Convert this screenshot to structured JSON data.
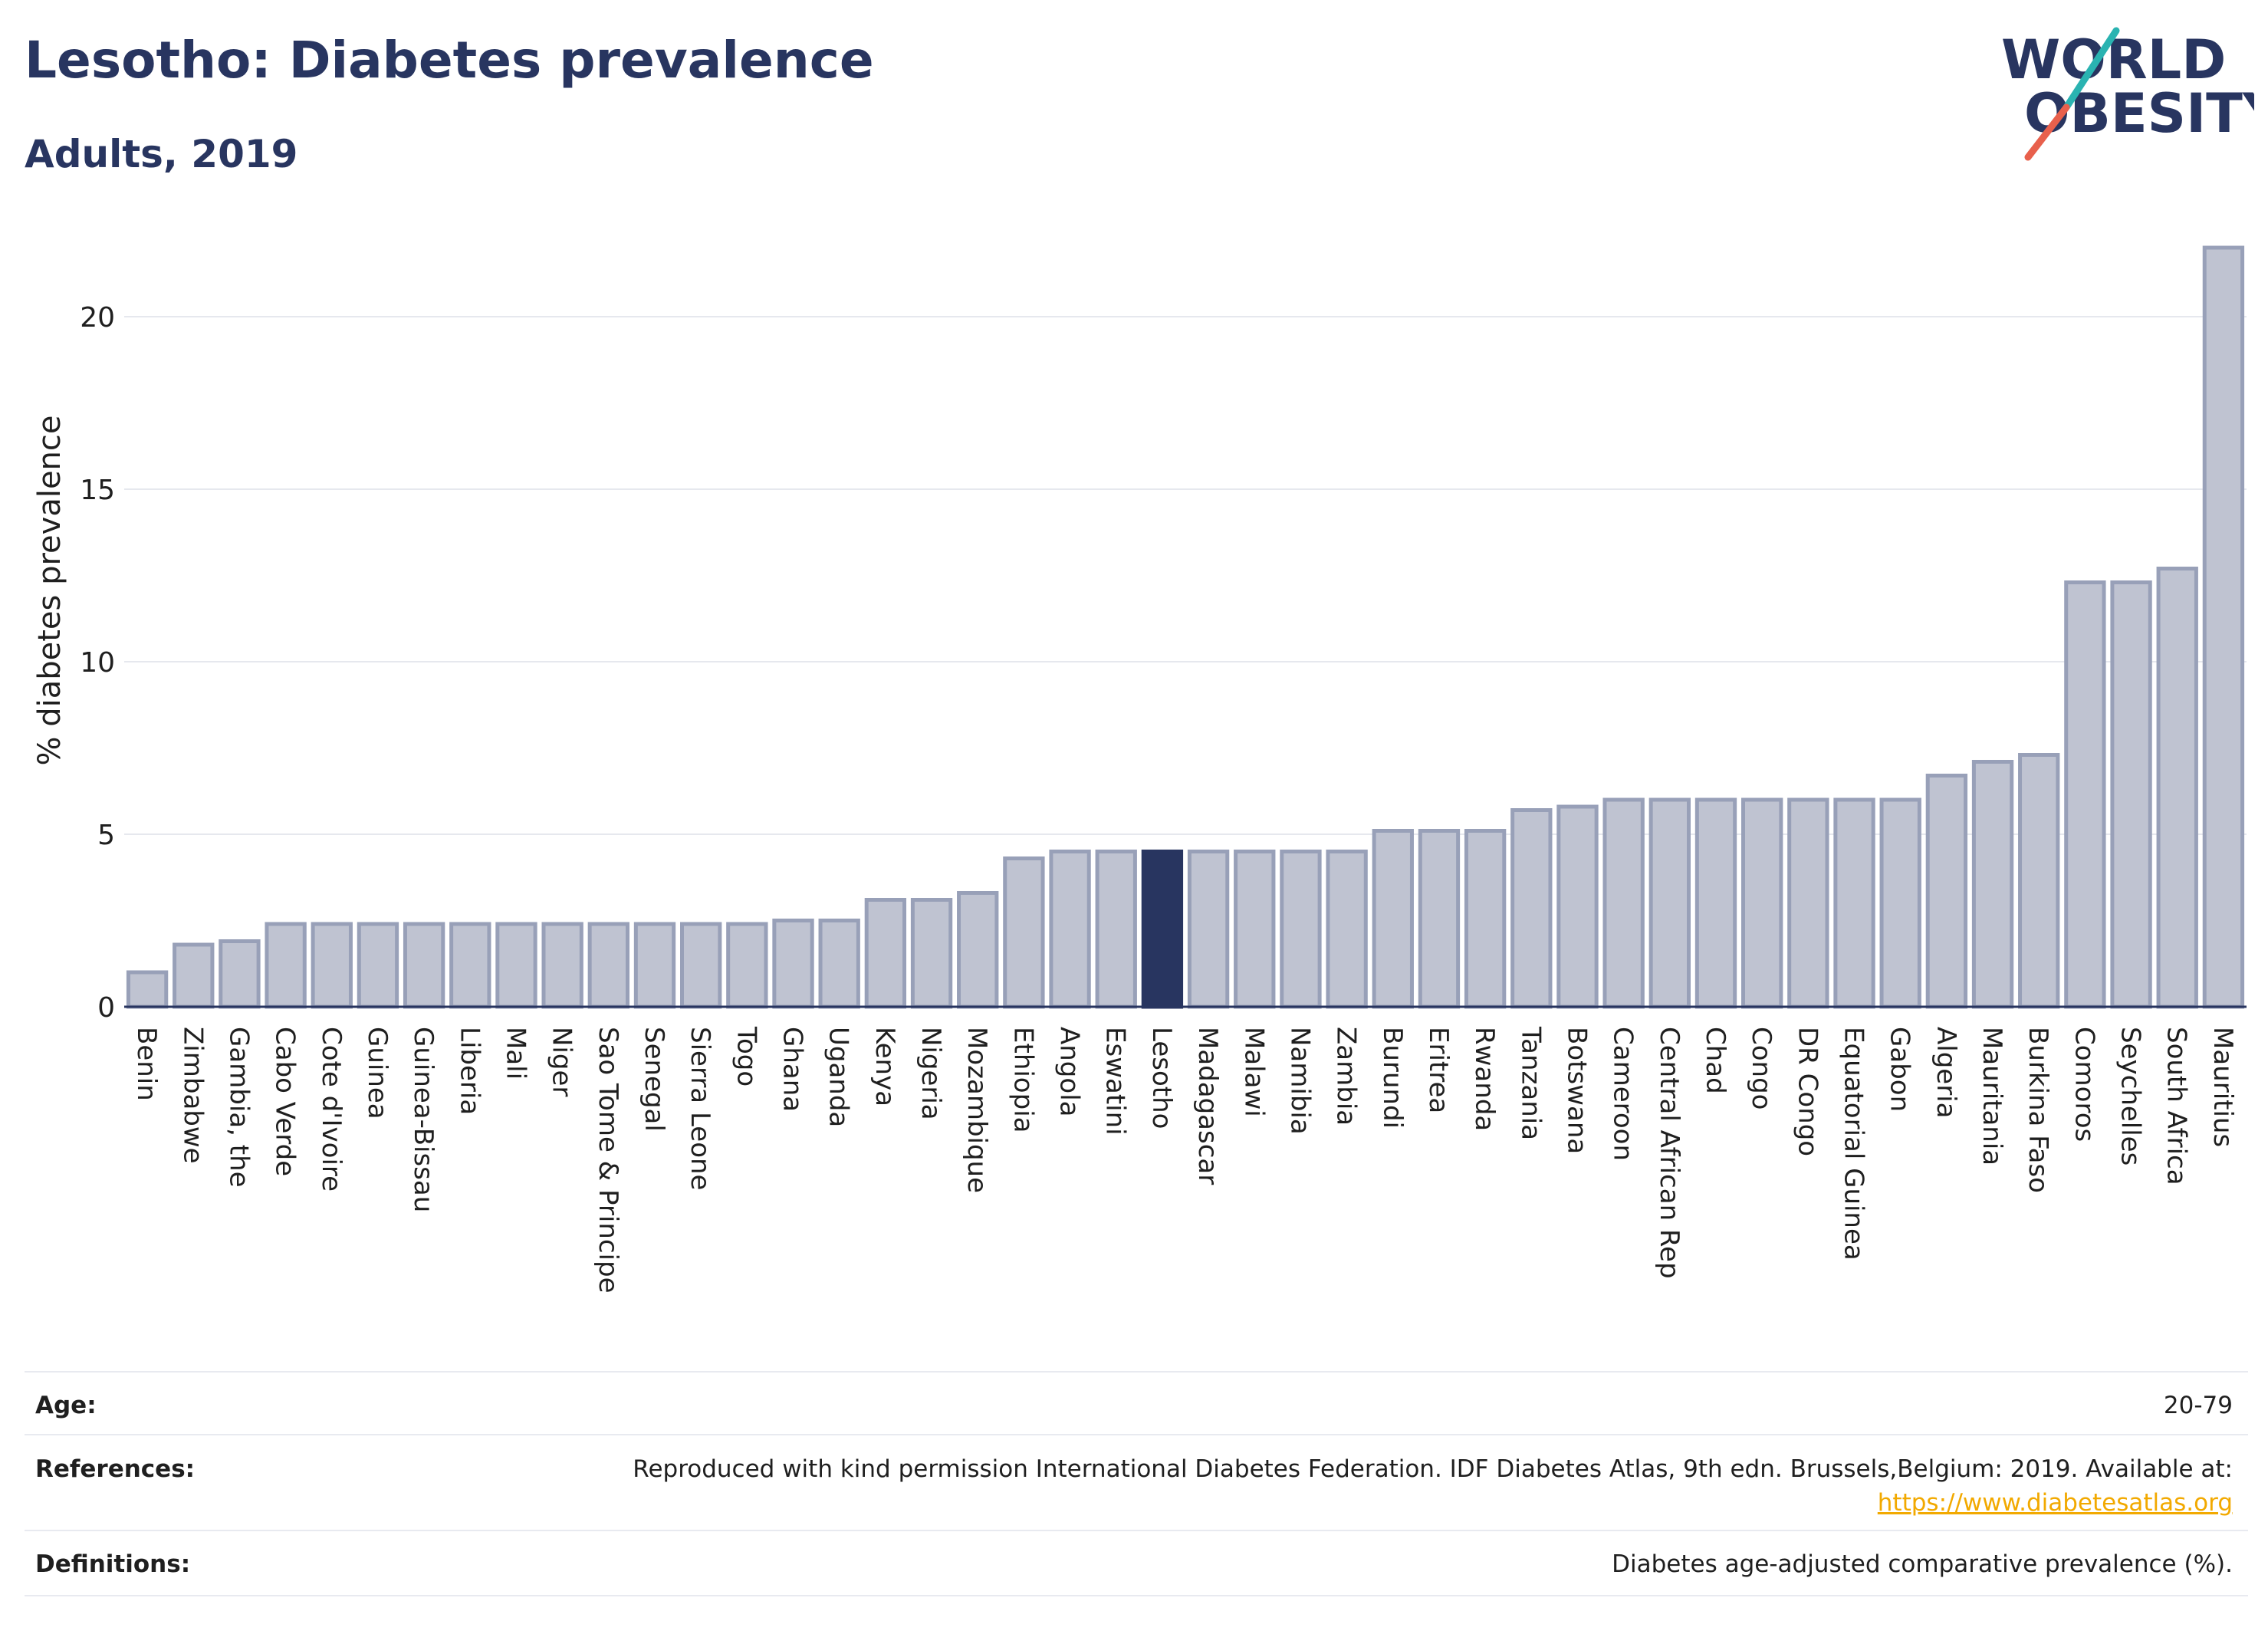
{
  "title": "Lesotho: Diabetes prevalence",
  "subtitle": "Adults, 2019",
  "logo": {
    "line1": "WORLD",
    "line2": "OBESITY",
    "icon": "world-obesity-logo-icon"
  },
  "colors": {
    "bar": "#bfc3d1",
    "bar_border": "#98a0b8",
    "highlight": "#283560",
    "title": "#283560",
    "link": "#f2a900"
  },
  "meta": {
    "age_label": "Age:",
    "age_value": "20-79",
    "references_label": "References:",
    "references_text": "Reproduced with kind permission International Diabetes Federation. IDF Diabetes Atlas, 9th edn. Brussels,Belgium: 2019. Available at:",
    "references_link": "https://www.diabetesatlas.org",
    "definitions_label": "Definitions:",
    "definitions_value": "Diabetes age-adjusted comparative prevalence (%)."
  },
  "chart_data": {
    "type": "bar",
    "title": "Lesotho: Diabetes prevalence",
    "subtitle": "Adults, 2019",
    "ylabel": "% diabetes prevalence",
    "xlabel": "",
    "ylim": [
      0,
      22
    ],
    "yticks": [
      "0",
      "5",
      "10",
      "15",
      "20"
    ],
    "highlight": "Lesotho",
    "grid": true,
    "categories": [
      "Benin",
      "Zimbabwe",
      "Gambia, the",
      "Cabo Verde",
      "Cote d'Ivoire",
      "Guinea",
      "Guinea-Bissau",
      "Liberia",
      "Mali",
      "Niger",
      "Sao Tome & Principe",
      "Senegal",
      "Sierra Leone",
      "Togo",
      "Ghana",
      "Uganda",
      "Kenya",
      "Nigeria",
      "Mozambique",
      "Ethiopia",
      "Angola",
      "Eswatini",
      "Lesotho",
      "Madagascar",
      "Malawi",
      "Namibia",
      "Zambia",
      "Burundi",
      "Eritrea",
      "Rwanda",
      "Tanzania",
      "Botswana",
      "Cameroon",
      "Central African Rep",
      "Chad",
      "Congo",
      "DR Congo",
      "Equatorial Guinea",
      "Gabon",
      "Algeria",
      "Mauritania",
      "Burkina Faso",
      "Comoros",
      "Seychelles",
      "South Africa",
      "Mauritius"
    ],
    "values": [
      1.0,
      1.8,
      1.9,
      2.4,
      2.4,
      2.4,
      2.4,
      2.4,
      2.4,
      2.4,
      2.4,
      2.4,
      2.4,
      2.4,
      2.5,
      2.5,
      3.1,
      3.1,
      3.3,
      4.3,
      4.5,
      4.5,
      4.5,
      4.5,
      4.5,
      4.5,
      4.5,
      5.1,
      5.1,
      5.1,
      5.7,
      5.8,
      6.0,
      6.0,
      6.0,
      6.0,
      6.0,
      6.0,
      6.0,
      6.7,
      7.1,
      7.3,
      12.3,
      12.3,
      12.7,
      22.0
    ]
  }
}
